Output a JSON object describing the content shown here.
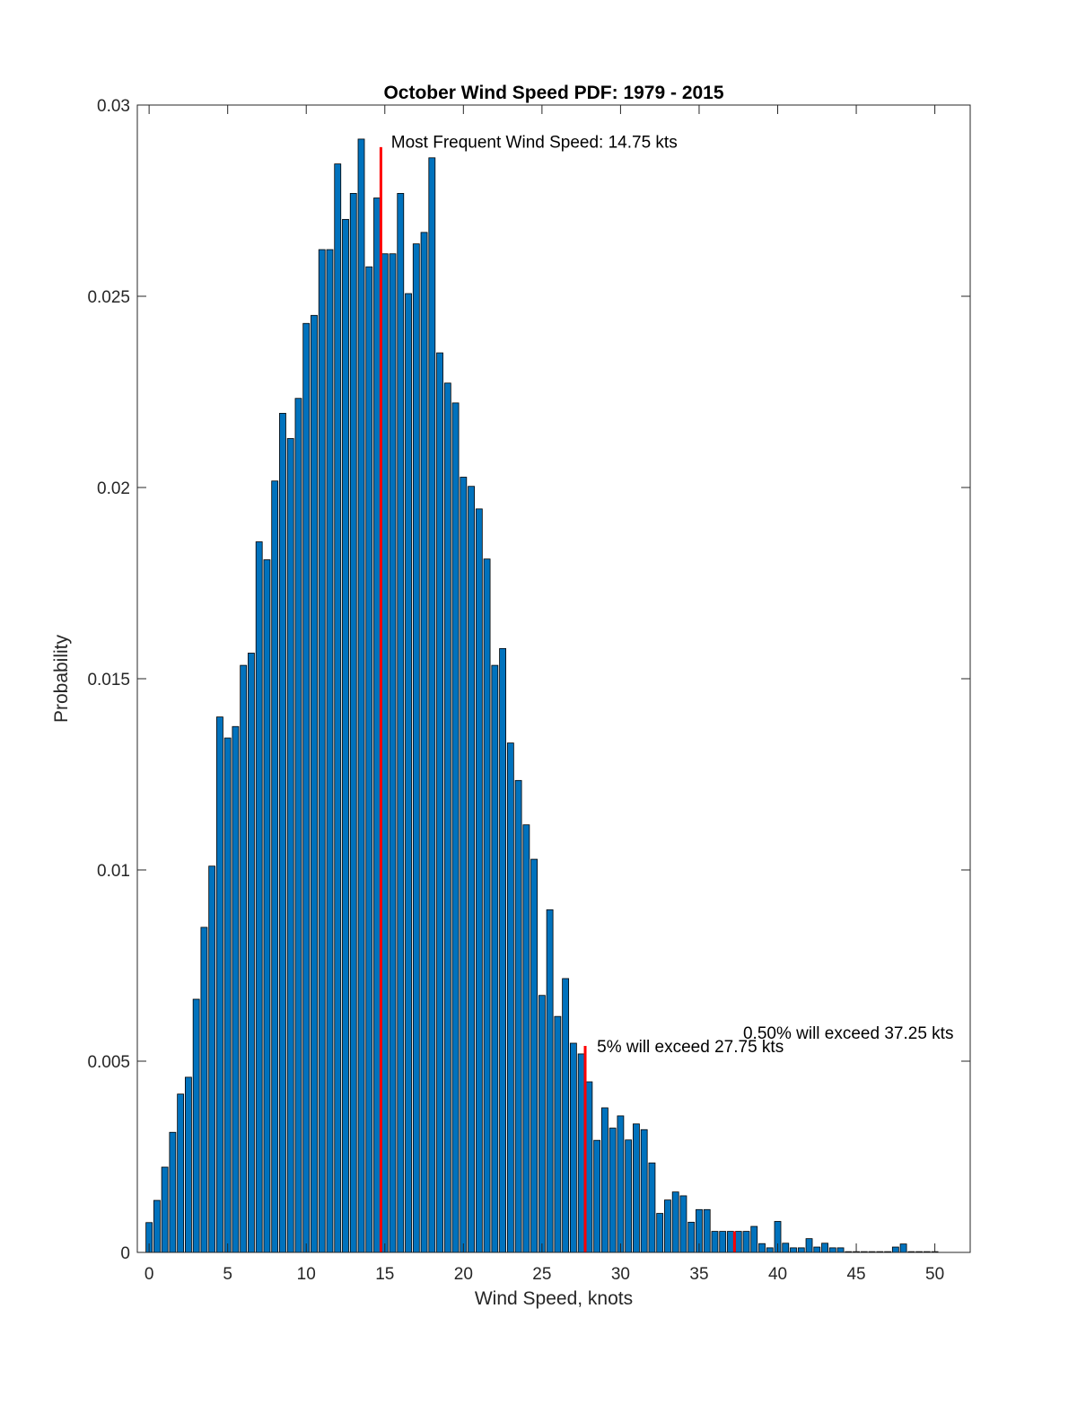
{
  "chart_data": {
    "type": "bar",
    "title": "October Wind Speed PDF: 1979 - 2015",
    "xlabel": "Wind Speed, knots",
    "ylabel": "Probability",
    "xlim": [
      -0.75,
      52.25
    ],
    "ylim": [
      0,
      0.03
    ],
    "xticks": [
      0,
      5,
      10,
      15,
      20,
      25,
      30,
      35,
      40,
      45,
      50
    ],
    "xtick_labels": [
      "0",
      "5",
      "10",
      "15",
      "20",
      "25",
      "30",
      "35",
      "40",
      "45",
      "50"
    ],
    "yticks": [
      0,
      0.005,
      0.01,
      0.015,
      0.02,
      0.025,
      0.03
    ],
    "ytick_labels": [
      "0",
      "0.005",
      "0.01",
      "0.015",
      "0.02",
      "0.025",
      "0.03"
    ],
    "bin_width": 0.5,
    "x": [
      0,
      0.5,
      1,
      1.5,
      2,
      2.5,
      3,
      3.5,
      4,
      4.5,
      5,
      5.5,
      6,
      6.5,
      7,
      7.5,
      8,
      8.5,
      9,
      9.5,
      10,
      10.5,
      11,
      11.5,
      12,
      12.5,
      13,
      13.5,
      14,
      14.5,
      15,
      15.5,
      16,
      16.5,
      17,
      17.5,
      18,
      18.5,
      19,
      19.5,
      20,
      20.5,
      21,
      21.5,
      22,
      22.5,
      23,
      23.5,
      24,
      24.5,
      25,
      25.5,
      26,
      26.5,
      27,
      27.5,
      28,
      28.5,
      29,
      29.5,
      30,
      30.5,
      31,
      31.5,
      32,
      32.5,
      33,
      33.5,
      34,
      34.5,
      35,
      35.5,
      36,
      36.5,
      37,
      37.5,
      38,
      38.5,
      39,
      39.5,
      40,
      40.5,
      41,
      41.5,
      42,
      42.5,
      43,
      43.5,
      44,
      44.5,
      45,
      45.5,
      46,
      46.5,
      47,
      47.5,
      48,
      48.5,
      49,
      49.5,
      50
    ],
    "values": [
      0.00078,
      0.00136,
      0.00223,
      0.00314,
      0.00414,
      0.00458,
      0.00662,
      0.0085,
      0.0101,
      0.014,
      0.01345,
      0.01375,
      0.01535,
      0.01567,
      0.01858,
      0.01811,
      0.02017,
      0.02194,
      0.02128,
      0.02233,
      0.02429,
      0.0245,
      0.02622,
      0.02622,
      0.02846,
      0.02701,
      0.02769,
      0.02911,
      0.02577,
      0.02757,
      0.02611,
      0.02611,
      0.02769,
      0.02507,
      0.02637,
      0.02667,
      0.02862,
      0.02352,
      0.02273,
      0.02221,
      0.02027,
      0.02003,
      0.01944,
      0.01813,
      0.01535,
      0.01579,
      0.01332,
      0.01234,
      0.01118,
      0.01028,
      0.00672,
      0.00896,
      0.00617,
      0.00716,
      0.00547,
      0.00519,
      0.00446,
      0.00293,
      0.00378,
      0.00325,
      0.00357,
      0.00294,
      0.00336,
      0.00321,
      0.00234,
      0.00102,
      0.00137,
      0.00158,
      0.00148,
      0.00079,
      0.00112,
      0.00112,
      0.00055,
      0.00055,
      0.00055,
      0.00055,
      0.00055,
      0.00068,
      0.00023,
      0.00012,
      0.00081,
      0.00024,
      0.00012,
      0.00012,
      0.00036,
      0.00014,
      0.00024,
      0.00012,
      0.00012,
      2e-05,
      2e-05,
      2e-05,
      2e-05,
      2e-05,
      2e-05,
      0.00014,
      0.00022,
      2e-05,
      2e-05,
      2e-05,
      2e-05
    ],
    "bar_color": "#0072bd",
    "marker_color": "#ff0000",
    "markers": [
      {
        "x": 14.75,
        "y_top": 0.0289,
        "label": "Most Frequent Wind Speed: 14.75 kts",
        "label_x": 15.4,
        "label_y": 0.02905
      },
      {
        "x": 27.75,
        "y_top": 0.0054,
        "label": "5% will exceed 27.75 kts",
        "label_x": 28.5,
        "label_y": 0.0054
      },
      {
        "x": 37.25,
        "y_top": 0.00055,
        "label": "0.50% will exceed 37.25 kts",
        "label_x": 37.8,
        "label_y": 0.00575
      }
    ],
    "grid": false,
    "legend": false
  }
}
